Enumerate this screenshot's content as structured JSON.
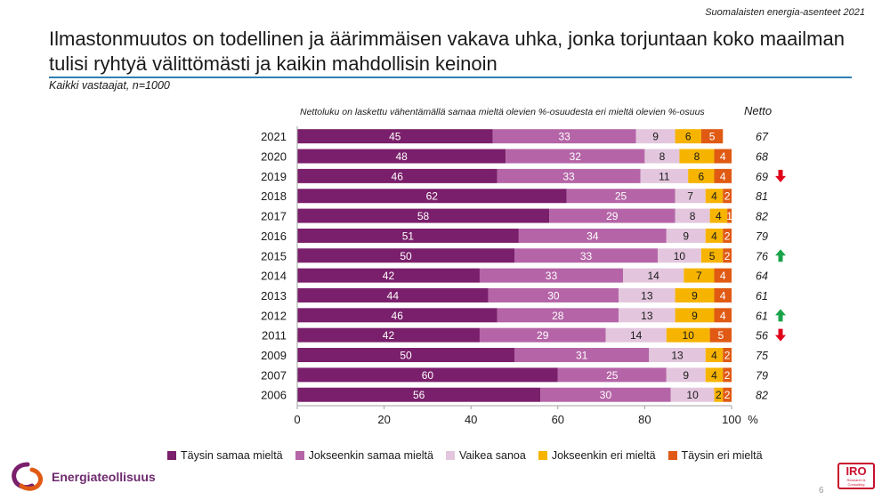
{
  "header": {
    "report_name": "Suomalaisten energia-asenteet 2021",
    "title": "Ilmastonmuutos on todellinen ja äärimmäisen vakava uhka, jonka torjuntaan koko maailman tulisi ryhtyä välittömästi ja kaikin mahdollisin keinoin",
    "subtitle": "Kaikki vastaajat, n=1000",
    "note": "Nettoluku on laskettu vähentämällä samaa mieltä olevien %-osuudesta eri mieltä olevien %-osuus",
    "netto_label": "Netto"
  },
  "chart_data": {
    "type": "bar",
    "orientation": "horizontal",
    "stacked": true,
    "categories": [
      "2021",
      "2020",
      "2019",
      "2018",
      "2017",
      "2016",
      "2015",
      "2014",
      "2013",
      "2012",
      "2011",
      "2009",
      "2007",
      "2006"
    ],
    "series": [
      {
        "name": "Täysin samaa mieltä",
        "color": "#7a1f6b",
        "label_color": "#ffffff",
        "values": [
          45,
          48,
          46,
          62,
          58,
          51,
          50,
          42,
          44,
          46,
          42,
          50,
          60,
          56
        ]
      },
      {
        "name": "Jokseenkin samaa mieltä",
        "color": "#b565a7",
        "label_color": "#ffffff",
        "values": [
          33,
          32,
          33,
          25,
          29,
          34,
          33,
          33,
          30,
          28,
          29,
          31,
          25,
          30
        ]
      },
      {
        "name": "Vaikea sanoa",
        "color": "#e3c6dd",
        "label_color": "#1a1a1a",
        "values": [
          9,
          8,
          11,
          7,
          8,
          9,
          10,
          14,
          13,
          13,
          14,
          13,
          9,
          10
        ]
      },
      {
        "name": "Jokseenkin eri mieltä",
        "color": "#f6b400",
        "label_color": "#1a1a1a",
        "values": [
          6,
          8,
          6,
          4,
          4,
          4,
          5,
          7,
          9,
          9,
          10,
          4,
          4,
          2
        ]
      },
      {
        "name": "Täysin eri mieltä",
        "color": "#e05a14",
        "label_color": "#ffffff",
        "values": [
          5,
          4,
          4,
          2,
          1,
          2,
          2,
          4,
          4,
          4,
          5,
          2,
          2,
          2
        ]
      }
    ],
    "netto": [
      67,
      68,
      69,
      81,
      82,
      79,
      76,
      64,
      61,
      61,
      56,
      75,
      79,
      82
    ],
    "trend_arrows": [
      "",
      "",
      "down",
      "",
      "",
      "",
      "up",
      "",
      "",
      "up",
      "down",
      "",
      "",
      ""
    ],
    "arrow_colors": {
      "up": "#1aa34a",
      "down": "#e0001b"
    },
    "xlim": [
      0,
      100
    ],
    "xticks": [
      0,
      20,
      40,
      60,
      80,
      100
    ],
    "x_unit": "%",
    "legend_position": "bottom",
    "grid": false
  },
  "footer": {
    "logo_left_text": "Energiateollisuus",
    "logo_right_main": "IRO",
    "logo_right_sub": "Research & Consulting",
    "page_number": "6"
  }
}
